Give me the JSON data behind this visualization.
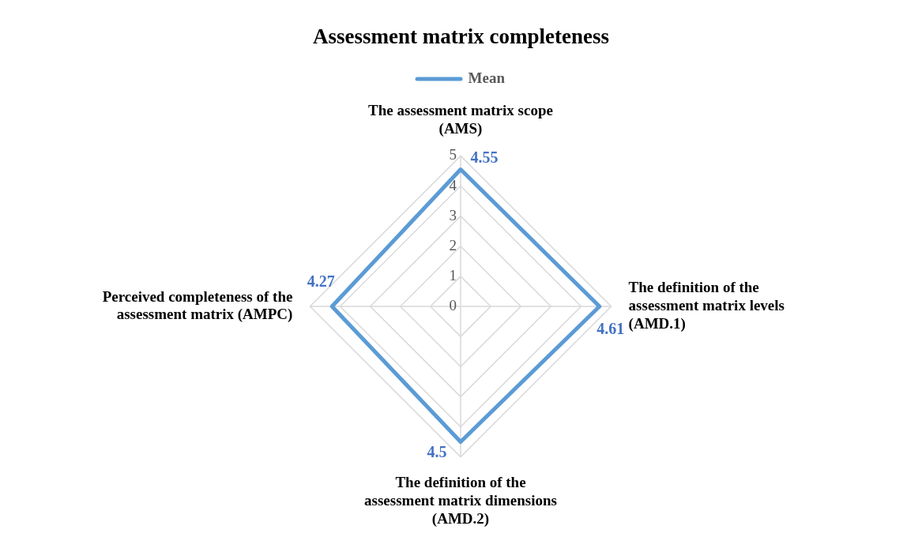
{
  "chart_data": {
    "type": "radar",
    "title": "Assessment matrix completeness",
    "categories": [
      "The assessment matrix scope\n(AMS)",
      "The definition of the\nassessment matrix levels\n(AMD.1)",
      "The definition of the\nassessment matrix dimensions\n(AMD.2)",
      "Perceived completeness of the\nassessment matrix (AMPC)"
    ],
    "series": [
      {
        "name": "Mean",
        "color": "#5b9bd5",
        "values": [
          4.55,
          4.61,
          4.5,
          4.27
        ]
      }
    ],
    "ylim": [
      0,
      5
    ],
    "yticks": [
      0,
      1,
      2,
      3,
      4,
      5
    ],
    "grid": true,
    "legend": "top",
    "marker": "none",
    "data_labels": true
  }
}
